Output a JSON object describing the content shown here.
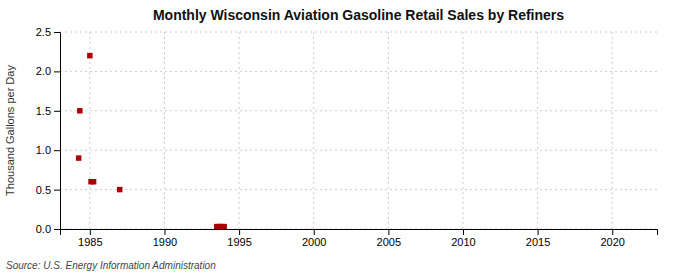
{
  "chart_data": {
    "type": "scatter",
    "title": "Monthly Wisconsin Aviation Gasoline Retail Sales by Refiners",
    "ylabel": "Thousand Gallons per Day",
    "source": "Source: U.S. Energy Information Administration",
    "x": [
      1984.25,
      1984.33,
      1985.0,
      1985.08,
      1985.25,
      1987.0,
      1993.5,
      1993.6,
      1993.7,
      1993.8,
      1993.9,
      1994.0
    ],
    "values": [
      0.9,
      1.5,
      2.2,
      0.6,
      0.6,
      0.5,
      0.03,
      0.03,
      0.03,
      0.03,
      0.03,
      0.03
    ],
    "color": "#aa0000",
    "marker": "square",
    "xlim": [
      1983,
      2023
    ],
    "ylim": [
      0.0,
      2.5
    ],
    "xticks": [
      1985,
      1990,
      1995,
      2000,
      2005,
      2010,
      2015,
      2020
    ],
    "yticks": [
      {
        "value": 0.0,
        "label": "0.0"
      },
      0.5,
      {
        "value": 1.0,
        "label": "1.0"
      },
      1.5,
      {
        "value": 2.0,
        "label": "2.0"
      },
      2.5
    ],
    "grid": true
  }
}
